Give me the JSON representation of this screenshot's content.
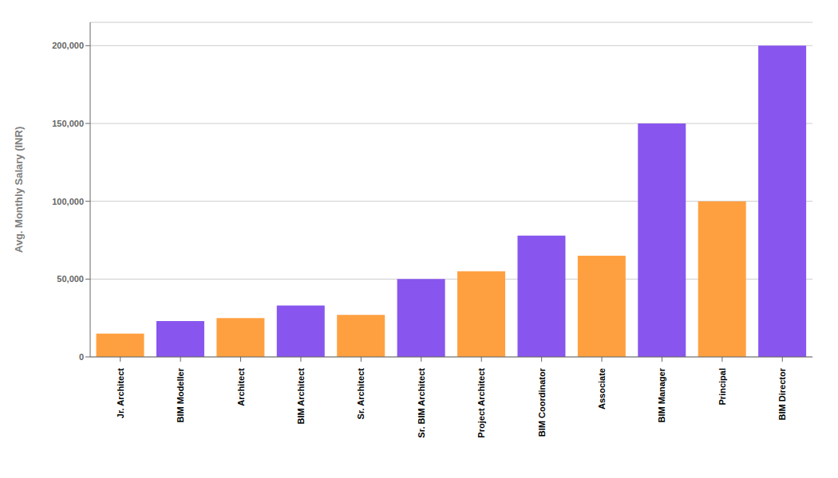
{
  "chart_data": {
    "type": "bar",
    "ylabel": "Avg. Monthly Salary (INR)",
    "categories": [
      "Jr. Architect",
      "BIM Modeller",
      "Architect",
      "BIM Architect",
      "Sr. Architect",
      "Sr. BIM Architect",
      "Project Architect",
      "BIM Coordinator",
      "Associate",
      "BIM Manager",
      "Principal",
      "BIM Director"
    ],
    "values": [
      15000,
      23000,
      25000,
      33000,
      27000,
      50000,
      55000,
      78000,
      65000,
      150000,
      100000,
      200000
    ],
    "colors": [
      "#FFA040",
      "#8855EE",
      "#FFA040",
      "#8855EE",
      "#FFA040",
      "#8855EE",
      "#FFA040",
      "#8855EE",
      "#FFA040",
      "#8855EE",
      "#FFA040",
      "#8855EE"
    ],
    "ylim": [
      0,
      215000
    ],
    "yticks": [
      0,
      {
        "value": 50000,
        "label": "50,000"
      },
      {
        "value": 100000,
        "label": "100,000"
      },
      {
        "value": 150000,
        "label": "150,000"
      },
      {
        "value": 200000,
        "label": "200,000"
      }
    ],
    "grid": true
  }
}
